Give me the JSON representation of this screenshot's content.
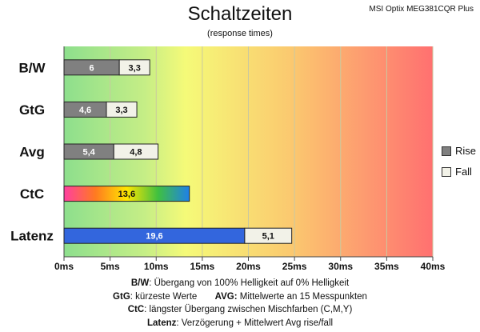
{
  "header": {
    "title": "Schaltzeiten",
    "subtitle": "(response times)",
    "model": "MSI Optix MEG381CQR Plus"
  },
  "chart_data": {
    "type": "bar",
    "orientation": "horizontal",
    "stacked": true,
    "categories": [
      "B/W",
      "GtG",
      "Avg",
      "CtC",
      "Latenz"
    ],
    "series": [
      {
        "name": "Rise",
        "values": [
          6,
          4.6,
          5.4,
          13.6,
          19.6
        ],
        "labels": [
          "6",
          "4,6",
          "5,4",
          "13,6",
          "19,6"
        ]
      },
      {
        "name": "Fall",
        "values": [
          3.3,
          3.3,
          4.8,
          null,
          5.1
        ],
        "labels": [
          "3,3",
          "3,3",
          "4,8",
          "",
          "5,1"
        ]
      }
    ],
    "xlim": [
      0,
      40
    ],
    "xticks": [
      0,
      5,
      10,
      15,
      20,
      25,
      30,
      35,
      40
    ],
    "xtick_labels": [
      "0ms",
      "5ms",
      "10ms",
      "15ms",
      "20ms",
      "25ms",
      "30ms",
      "35ms",
      "40ms"
    ],
    "grid": true,
    "legend": "right",
    "colors": {
      "rise": "#808080",
      "fall": "#f2f2e8",
      "ctc": "rainbow",
      "latenz": "#3366dd",
      "background_start": "#8ddf8d",
      "background_mid": "#f5fa78",
      "background_end": "#ff7070"
    }
  },
  "legend": {
    "rise": "Rise",
    "fall": "Fall"
  },
  "notes": {
    "bw_key": "B/W",
    "bw_text": ":  Übergang von 100% Helligkeit auf 0% Helligkeit",
    "gtg_key": "GtG",
    "gtg_text": ": kürzeste  Werte",
    "avg_key": "AVG:",
    "avg_text": " Mittelwerte  an 15 Messpunkten",
    "ctc_key": "CtC",
    "ctc_text": ": längster Übergang  zwischen Mischfarben  (C,M,Y)",
    "latenz_key": "Latenz",
    "latenz_text": ": Verzögerung  + Mittelwert  Avg rise/fall"
  }
}
